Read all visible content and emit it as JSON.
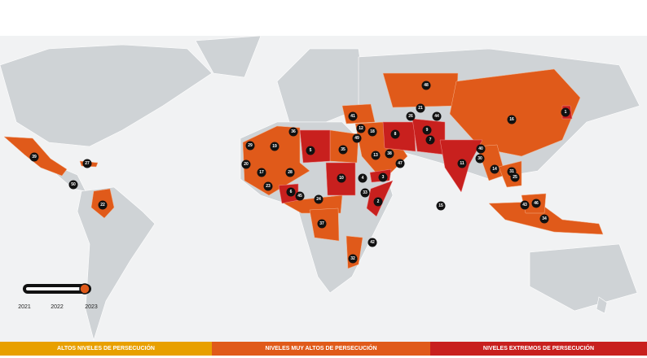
{
  "markers": [
    {
      "label": 48
    },
    {
      "label": 21
    },
    {
      "label": 1
    },
    {
      "label": 16
    },
    {
      "label": 41
    },
    {
      "label": 26
    },
    {
      "label": 44
    },
    {
      "label": 36
    },
    {
      "label": 12
    },
    {
      "label": 18
    },
    {
      "label": 8
    },
    {
      "label": 9
    },
    {
      "label": 7
    },
    {
      "label": 29
    },
    {
      "label": 19
    },
    {
      "label": 5
    },
    {
      "label": 35
    },
    {
      "label": 49
    },
    {
      "label": 13
    },
    {
      "label": 38
    },
    {
      "label": 40
    },
    {
      "label": 39
    },
    {
      "label": 27
    },
    {
      "label": 20
    },
    {
      "label": 17
    },
    {
      "label": 28
    },
    {
      "label": 10
    },
    {
      "label": 4
    },
    {
      "label": 3
    },
    {
      "label": 47
    },
    {
      "label": 11
    },
    {
      "label": 30
    },
    {
      "label": 14
    },
    {
      "label": 31
    },
    {
      "label": 25
    },
    {
      "label": 23
    },
    {
      "label": 6
    },
    {
      "label": 45
    },
    {
      "label": 24
    },
    {
      "label": 33
    },
    {
      "label": 2
    },
    {
      "label": 50
    },
    {
      "label": 22
    },
    {
      "label": 15
    },
    {
      "label": 43
    },
    {
      "label": 46
    },
    {
      "label": 34
    },
    {
      "label": 37
    },
    {
      "label": 42
    },
    {
      "label": 32
    }
  ],
  "timeline": {
    "years": [
      2021,
      2022,
      2023
    ]
  },
  "legend": [
    "ALTOS NIVELES DE PERSECUCIÓN",
    "NIVELES MUY ALTOS DE PERSECUCIÓN",
    "NIVELES EXTREMOS DE PERSECUCIÓN"
  ]
}
